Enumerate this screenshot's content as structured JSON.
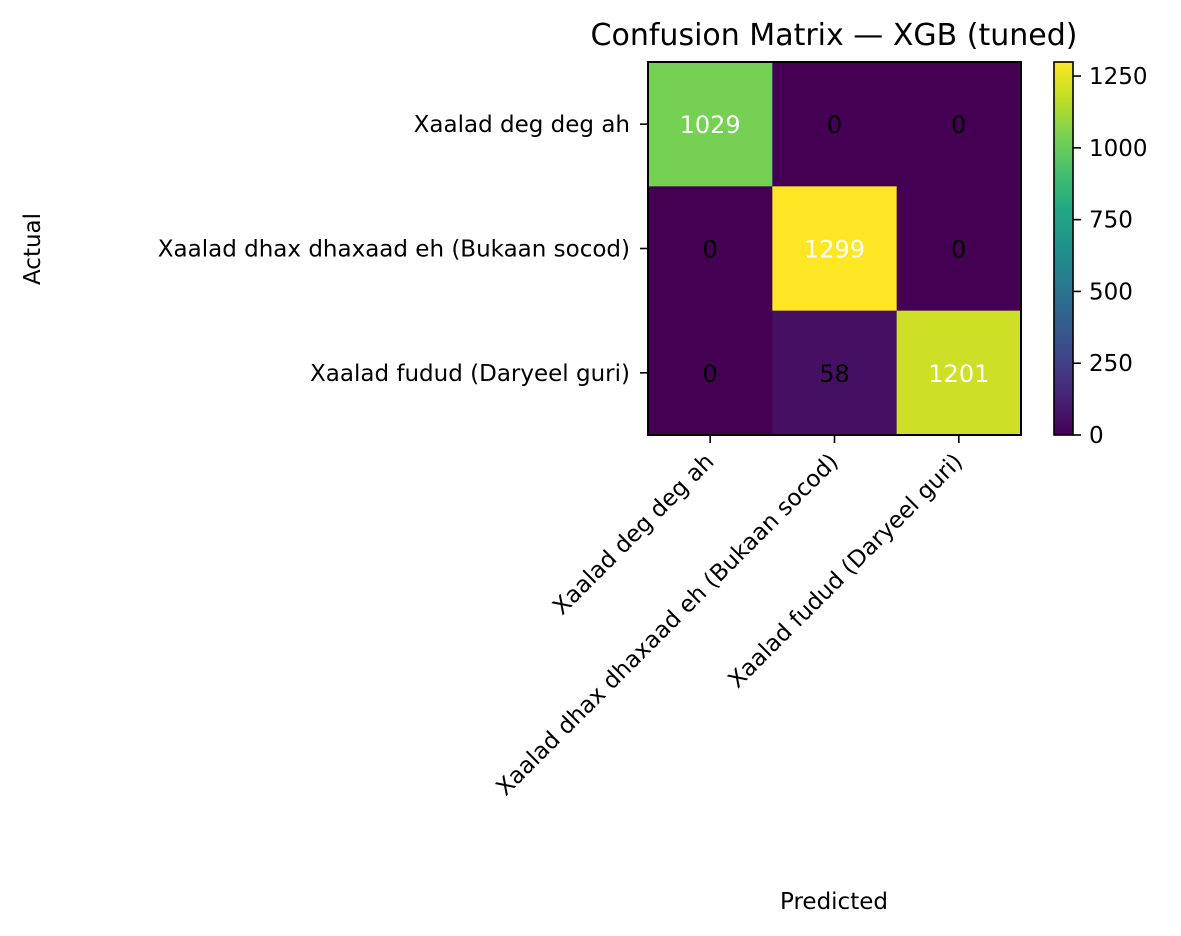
{
  "chart_data": {
    "type": "heatmap",
    "title": "Confusion Matrix — XGB (tuned)",
    "xlabel": "Predicted",
    "ylabel": "Actual",
    "x_categories": [
      "Xaalad deg deg ah",
      "Xaalad dhax dhaxaad eh (Bukaan socod)",
      "Xaalad fudud (Daryeel guri)"
    ],
    "y_categories": [
      "Xaalad deg deg ah",
      "Xaalad dhax dhaxaad eh (Bukaan socod)",
      "Xaalad fudud (Daryeel guri)"
    ],
    "matrix": [
      [
        1029,
        0,
        0
      ],
      [
        0,
        1299,
        0
      ],
      [
        0,
        58,
        1201
      ]
    ],
    "colormap": "viridis",
    "colorbar": {
      "range": [
        0,
        1299
      ],
      "ticks": [
        0,
        250,
        500,
        750,
        1000,
        1250
      ]
    },
    "grid": false,
    "legend": "colorbar-right"
  }
}
